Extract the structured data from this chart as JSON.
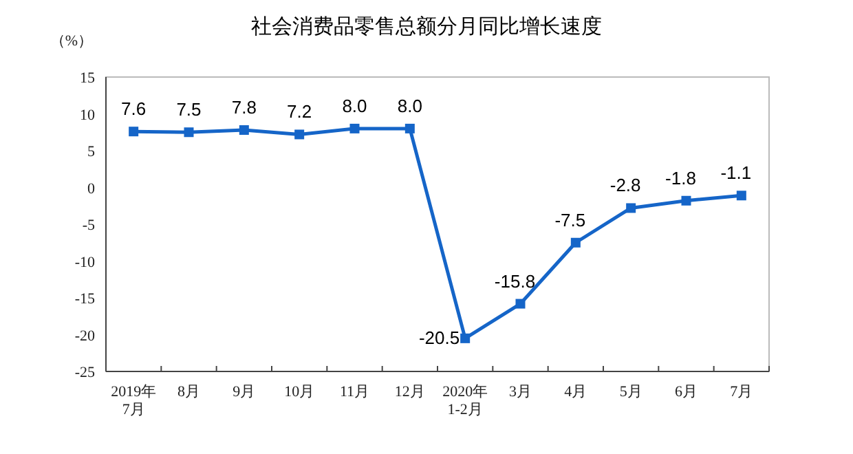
{
  "chart_data": {
    "type": "line",
    "title": "社会消费品零售总额分月同比增长速度",
    "ylabel": "（%）",
    "categories": [
      "2019年\n7月",
      "8月",
      "9月",
      "10月",
      "11月",
      "12月",
      "2020年\n1-2月",
      "3月",
      "4月",
      "5月",
      "6月",
      "7月"
    ],
    "series": [
      {
        "color": "#1565c8",
        "values": [
          7.6,
          7.5,
          7.8,
          7.2,
          8.0,
          8.0,
          -20.5,
          -15.8,
          -7.5,
          -2.8,
          -1.8,
          -1.1
        ],
        "value_labels": [
          "7.6",
          "7.5",
          "7.8",
          "7.2",
          "8.0",
          "8.0",
          "-20.5",
          "-15.8",
          "-7.5",
          "-2.8",
          "-1.8",
          "-1.1"
        ]
      }
    ],
    "ylim": [
      -25,
      15
    ],
    "yticks": [
      -25,
      -20,
      -15,
      -10,
      -5,
      0,
      5,
      10,
      15
    ],
    "marker": "square",
    "line_style": "solid"
  }
}
